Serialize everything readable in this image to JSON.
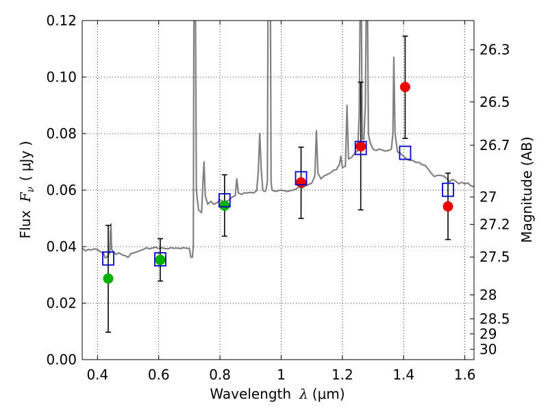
{
  "chart_data": {
    "type": "scatter",
    "xlabel_prefix": "Wavelength",
    "xlabel_symbol": "λ",
    "xlabel_unit": "(μm)",
    "ylabel_prefix": "Flux",
    "ylabel_symbol": "F",
    "ylabel_subscript": "ν",
    "ylabel_unit": "( μJy )",
    "y2label": "Magnitude (AB)",
    "xlim": [
      0.35,
      1.63
    ],
    "ylim": [
      0.0,
      0.12
    ],
    "xticks": [
      0.4,
      0.6,
      0.8,
      1.0,
      1.2,
      1.4,
      1.6
    ],
    "xtick_labels": [
      "0.4",
      "0.6",
      "0.8",
      "1",
      "1.2",
      "1.4",
      "1.6"
    ],
    "yticks": [
      0.0,
      0.02,
      0.04,
      0.06,
      0.08,
      0.1,
      0.12
    ],
    "ytick_labels": [
      "0.00",
      "0.02",
      "0.04",
      "0.06",
      "0.08",
      "0.10",
      "0.12"
    ],
    "y2ticks": [
      26.3,
      26.5,
      26.7,
      27.0,
      27.2,
      27.5,
      28.0,
      28.5,
      29.0,
      30.0
    ],
    "y2tick_labels": [
      "26.3",
      "26.5",
      "26.7",
      "27",
      "27.2",
      "27.5",
      "28",
      "28.5",
      "29",
      "30"
    ],
    "grid": true,
    "colors": {
      "spectrum": "#808080",
      "model_box": "#0000cc",
      "obs_green": "#00b000",
      "obs_red": "#ee0000",
      "errorbar": "#000000"
    },
    "spectrum": {
      "name": "",
      "points": [
        [
          0.35,
          0.0395
        ],
        [
          0.36,
          0.0385
        ],
        [
          0.37,
          0.039
        ],
        [
          0.38,
          0.0388
        ],
        [
          0.39,
          0.0392
        ],
        [
          0.4,
          0.0389
        ],
        [
          0.41,
          0.0382
        ],
        [
          0.42,
          0.0376
        ],
        [
          0.425,
          0.036
        ],
        [
          0.43,
          0.0362
        ],
        [
          0.44,
          0.0378
        ],
        [
          0.442,
          0.045
        ],
        [
          0.444,
          0.048
        ],
        [
          0.446,
          0.039
        ],
        [
          0.45,
          0.0385
        ],
        [
          0.46,
          0.0372
        ],
        [
          0.47,
          0.0378
        ],
        [
          0.48,
          0.0371
        ],
        [
          0.49,
          0.0368
        ],
        [
          0.5,
          0.0362
        ],
        [
          0.51,
          0.0376
        ],
        [
          0.52,
          0.0378
        ],
        [
          0.53,
          0.0382
        ],
        [
          0.54,
          0.0386
        ],
        [
          0.55,
          0.039
        ],
        [
          0.56,
          0.0396
        ],
        [
          0.57,
          0.0392
        ],
        [
          0.58,
          0.0395
        ],
        [
          0.59,
          0.0398
        ],
        [
          0.6,
          0.0393
        ],
        [
          0.61,
          0.0396
        ],
        [
          0.62,
          0.0393
        ],
        [
          0.63,
          0.0392
        ],
        [
          0.64,
          0.0396
        ],
        [
          0.65,
          0.0394
        ],
        [
          0.66,
          0.0395
        ],
        [
          0.67,
          0.0393
        ],
        [
          0.68,
          0.0396
        ],
        [
          0.69,
          0.0394
        ],
        [
          0.7,
          0.0394
        ],
        [
          0.705,
          0.0362
        ],
        [
          0.71,
          0.0362
        ],
        [
          0.713,
          0.04
        ],
        [
          0.715,
          0.125
        ],
        [
          0.72,
          0.125
        ],
        [
          0.723,
          0.06
        ],
        [
          0.73,
          0.053
        ],
        [
          0.74,
          0.052
        ],
        [
          0.745,
          0.064
        ],
        [
          0.748,
          0.07
        ],
        [
          0.752,
          0.058
        ],
        [
          0.76,
          0.055
        ],
        [
          0.77,
          0.056
        ],
        [
          0.78,
          0.055
        ],
        [
          0.79,
          0.0555
        ],
        [
          0.8,
          0.0565
        ],
        [
          0.81,
          0.056
        ],
        [
          0.82,
          0.056
        ],
        [
          0.83,
          0.0565
        ],
        [
          0.84,
          0.0575
        ],
        [
          0.85,
          0.058
        ],
        [
          0.855,
          0.064
        ],
        [
          0.86,
          0.059
        ],
        [
          0.87,
          0.0585
        ],
        [
          0.88,
          0.059
        ],
        [
          0.89,
          0.059
        ],
        [
          0.9,
          0.0592
        ],
        [
          0.91,
          0.059
        ],
        [
          0.92,
          0.0598
        ],
        [
          0.925,
          0.066
        ],
        [
          0.93,
          0.08
        ],
        [
          0.935,
          0.067
        ],
        [
          0.94,
          0.06
        ],
        [
          0.945,
          0.0595
        ],
        [
          0.95,
          0.0598
        ],
        [
          0.955,
          0.063
        ],
        [
          0.957,
          0.125
        ],
        [
          0.965,
          0.125
        ],
        [
          0.967,
          0.063
        ],
        [
          0.97,
          0.06
        ],
        [
          0.98,
          0.0595
        ],
        [
          0.99,
          0.0598
        ],
        [
          1.0,
          0.06
        ],
        [
          1.01,
          0.0598
        ],
        [
          1.02,
          0.0595
        ],
        [
          1.03,
          0.0598
        ],
        [
          1.04,
          0.06
        ],
        [
          1.05,
          0.0605
        ],
        [
          1.06,
          0.0612
        ],
        [
          1.07,
          0.0608
        ],
        [
          1.08,
          0.0615
        ],
        [
          1.09,
          0.062
        ],
        [
          1.1,
          0.0625
        ],
        [
          1.11,
          0.065
        ],
        [
          1.115,
          0.081
        ],
        [
          1.12,
          0.066
        ],
        [
          1.13,
          0.064
        ],
        [
          1.14,
          0.065
        ],
        [
          1.15,
          0.0655
        ],
        [
          1.16,
          0.066
        ],
        [
          1.17,
          0.067
        ],
        [
          1.18,
          0.0672
        ],
        [
          1.19,
          0.069
        ],
        [
          1.195,
          0.072
        ],
        [
          1.2,
          0.068
        ],
        [
          1.21,
          0.0685
        ],
        [
          1.215,
          0.09
        ],
        [
          1.22,
          0.071
        ],
        [
          1.23,
          0.0715
        ],
        [
          1.24,
          0.073
        ],
        [
          1.25,
          0.074
        ],
        [
          1.255,
          0.087
        ],
        [
          1.258,
          0.125
        ],
        [
          1.262,
          0.125
        ],
        [
          1.265,
          0.078
        ],
        [
          1.27,
          0.078
        ],
        [
          1.275,
          0.09
        ],
        [
          1.278,
          0.125
        ],
        [
          1.282,
          0.125
        ],
        [
          1.285,
          0.08
        ],
        [
          1.29,
          0.077
        ],
        [
          1.3,
          0.0745
        ],
        [
          1.31,
          0.074
        ],
        [
          1.32,
          0.0745
        ],
        [
          1.33,
          0.0742
        ],
        [
          1.34,
          0.0738
        ],
        [
          1.35,
          0.074
        ],
        [
          1.36,
          0.0745
        ],
        [
          1.365,
          0.08
        ],
        [
          1.368,
          0.107
        ],
        [
          1.372,
          0.08
        ],
        [
          1.38,
          0.0735
        ],
        [
          1.39,
          0.073
        ],
        [
          1.4,
          0.072
        ],
        [
          1.41,
          0.071
        ],
        [
          1.42,
          0.0705
        ],
        [
          1.43,
          0.0705
        ],
        [
          1.44,
          0.0698
        ],
        [
          1.45,
          0.0698
        ],
        [
          1.46,
          0.069
        ],
        [
          1.47,
          0.0688
        ],
        [
          1.48,
          0.0675
        ],
        [
          1.49,
          0.066
        ],
        [
          1.5,
          0.0648
        ],
        [
          1.51,
          0.0652
        ],
        [
          1.52,
          0.0652
        ],
        [
          1.53,
          0.065
        ],
        [
          1.54,
          0.0642
        ],
        [
          1.55,
          0.063
        ],
        [
          1.56,
          0.0638
        ],
        [
          1.57,
          0.0632
        ],
        [
          1.58,
          0.0622
        ],
        [
          1.59,
          0.0628
        ],
        [
          1.6,
          0.0622
        ],
        [
          1.61,
          0.0625
        ],
        [
          1.62,
          0.0615
        ],
        [
          1.63,
          0.0612
        ]
      ]
    },
    "model_points": {
      "name": "",
      "x": [
        0.435,
        0.605,
        0.815,
        1.065,
        1.26,
        1.405,
        1.545
      ],
      "y": [
        0.0358,
        0.0355,
        0.0564,
        0.0642,
        0.0749,
        0.0732,
        0.0601
      ]
    },
    "observations": [
      {
        "x": 0.435,
        "y": 0.0287,
        "yerr_low": 0.0097,
        "yerr_high": 0.0475,
        "color": "green"
      },
      {
        "x": 0.605,
        "y": 0.0353,
        "yerr_low": 0.0278,
        "yerr_high": 0.0428,
        "color": "green"
      },
      {
        "x": 0.815,
        "y": 0.0545,
        "yerr_low": 0.0437,
        "yerr_high": 0.0654,
        "color": "green"
      },
      {
        "x": 1.065,
        "y": 0.0627,
        "yerr_low": 0.05,
        "yerr_high": 0.0752,
        "color": "red"
      },
      {
        "x": 1.26,
        "y": 0.0755,
        "yerr_low": 0.053,
        "yerr_high": 0.0982,
        "color": "red"
      },
      {
        "x": 1.405,
        "y": 0.0965,
        "yerr_low": 0.0783,
        "yerr_high": 0.1145,
        "color": "red"
      },
      {
        "x": 1.545,
        "y": 0.0542,
        "yerr_low": 0.0425,
        "yerr_high": 0.066,
        "color": "red"
      }
    ]
  }
}
